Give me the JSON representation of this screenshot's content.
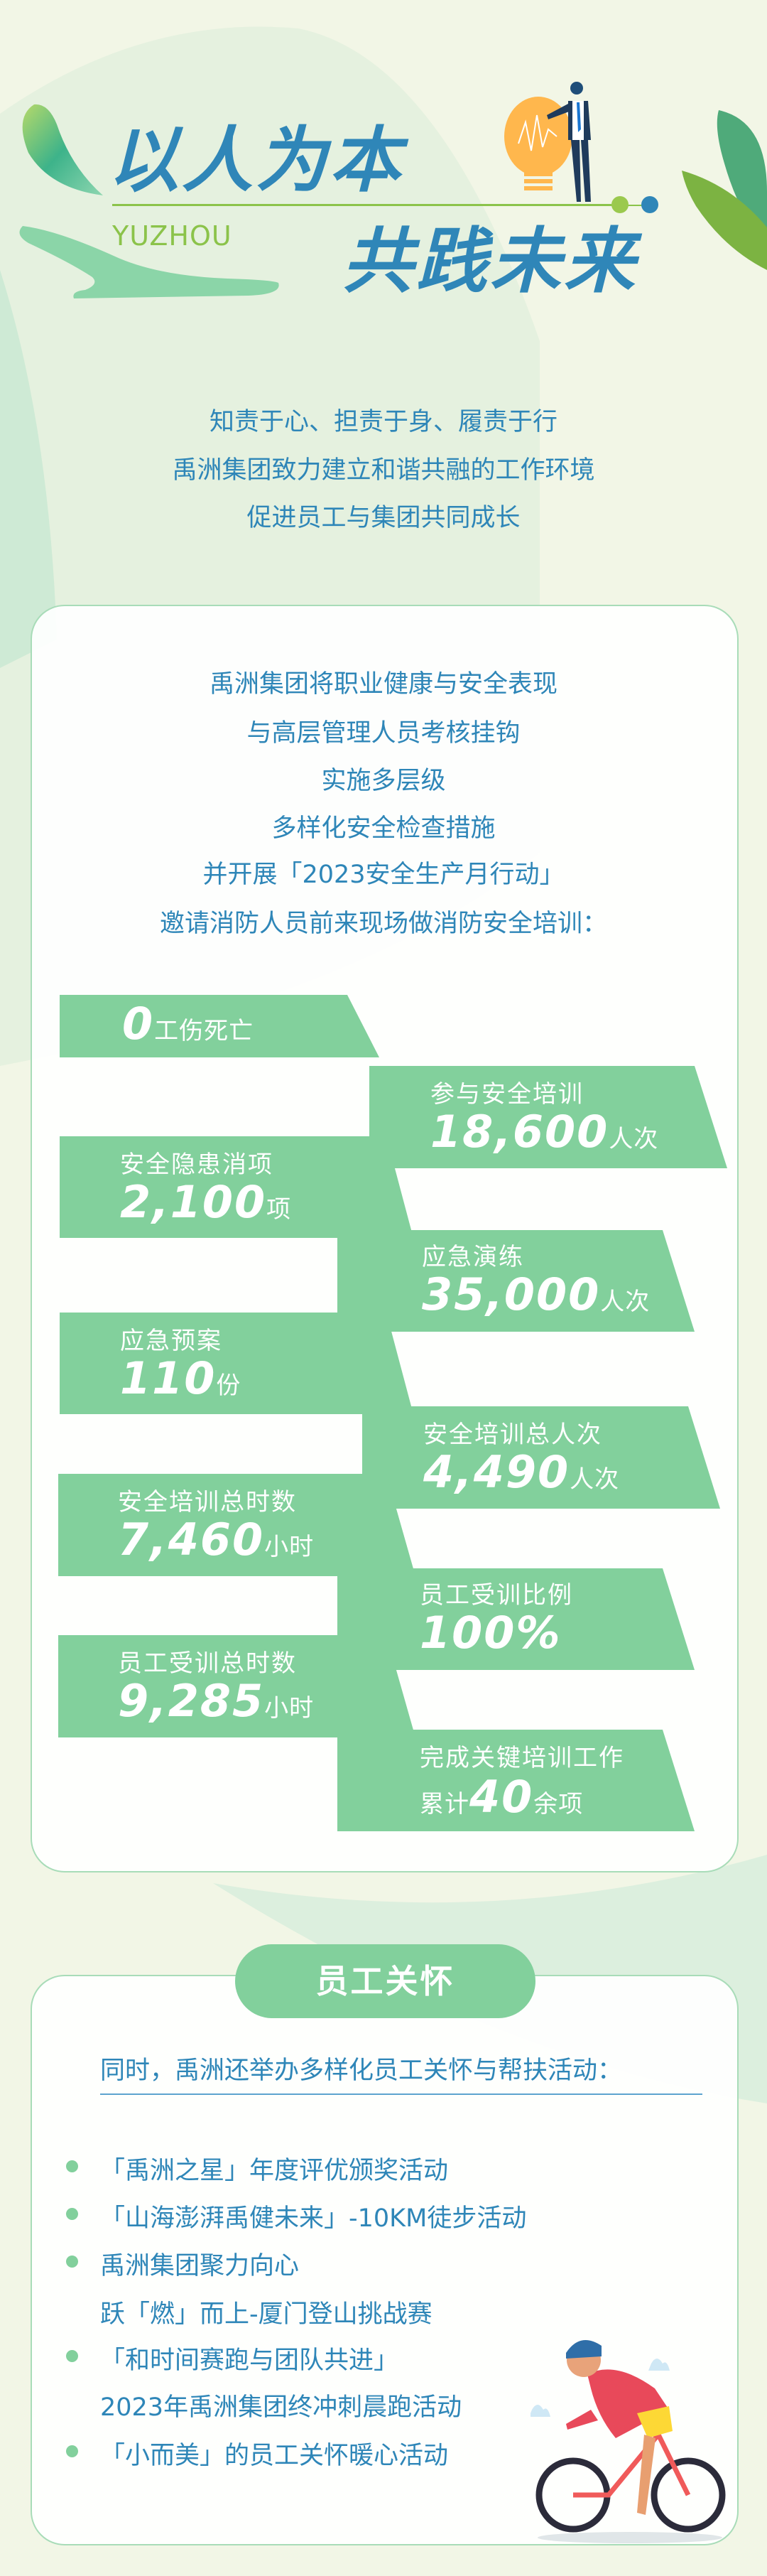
{
  "header": {
    "title_line1": "以人为本",
    "title_line2": "共践未来",
    "brand": "YUZHOU"
  },
  "intro": [
    "知责于心、担责于身、履责于行",
    "禹洲集团致力建立和谐共融的工作环境",
    "促进员工与集团共同成长"
  ],
  "safety": {
    "paragraph": [
      "禹洲集团将职业健康与安全表现",
      "与高层管理人员考核挂钩",
      "实施多层级",
      "多样化安全检查措施",
      "并开展「2023安全生产月行动」",
      "邀请消防人员前来现场做消防安全培训："
    ],
    "stats": [
      {
        "value": "0",
        "unit": "工伤死亡"
      },
      {
        "label": "参与安全培训",
        "value": "18,600",
        "unit": "人次"
      },
      {
        "label": "安全隐患消项",
        "value": "2,100",
        "unit": "项"
      },
      {
        "label": "应急演练",
        "value": "35,000",
        "unit": "人次"
      },
      {
        "label": "应急预案",
        "value": "110",
        "unit": "份"
      },
      {
        "label": "安全培训总人次",
        "value": "4,490",
        "unit": "人次"
      },
      {
        "label": "安全培训总时数",
        "value": "7,460",
        "unit": "小时"
      },
      {
        "label": "员工受训比例",
        "value": "100%",
        "unit": ""
      },
      {
        "label": "员工受训总时数",
        "value": "9,285",
        "unit": "小时"
      },
      {
        "label": "完成关键培训工作",
        "prefix": "累计",
        "value": "40",
        "unit": "余项"
      }
    ]
  },
  "care": {
    "heading": "员工关怀",
    "intro": "同时，禹洲还举办多样化员工关怀与帮扶活动：",
    "items": [
      {
        "lines": [
          "「禹洲之星」年度评优颁奖活动"
        ]
      },
      {
        "lines": [
          "「山海澎湃禹健未来」-10KM徒步活动"
        ]
      },
      {
        "lines": [
          "禹洲集团聚力向心",
          "跃「燃」而上-厦门登山挑战赛"
        ]
      },
      {
        "lines": [
          "「和时间赛跑与团队共进」",
          "2023年禹洲集团终冲刺晨跑活动"
        ]
      },
      {
        "lines": [
          "「小而美」的员工关怀暖心活动"
        ]
      }
    ]
  },
  "colors": {
    "accent_green": "#82d09c",
    "text_blue": "#2e86b8",
    "background": "#f2f6e6",
    "brand_green": "#8bc34a"
  }
}
